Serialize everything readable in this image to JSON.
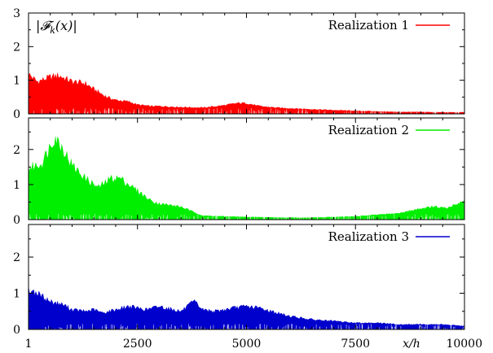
{
  "chart_data": [
    {
      "type": "area",
      "quantity_label": "|𝓕",
      "quantity_sub": "k",
      "quantity_tail": "(x)|",
      "legend_label": "Realization 1",
      "color": "#ff0000",
      "ylim": [
        0,
        3
      ],
      "yticks": [
        "0",
        "1",
        "2",
        "3"
      ],
      "x": [
        1,
        200,
        500,
        700,
        1000,
        1300,
        1500,
        1800,
        2000,
        2300,
        2500,
        2800,
        3000,
        3500,
        4000,
        4500,
        4800,
        5000,
        5300,
        5700,
        6000,
        6500,
        7000,
        7500,
        8000,
        8500,
        9000,
        9500,
        10000
      ],
      "y": [
        1.3,
        1.05,
        1.2,
        1.25,
        1.05,
        1.0,
        0.8,
        0.55,
        0.45,
        0.4,
        0.3,
        0.25,
        0.25,
        0.22,
        0.2,
        0.28,
        0.35,
        0.35,
        0.25,
        0.2,
        0.18,
        0.15,
        0.12,
        0.1,
        0.08,
        0.06,
        0.06,
        0.05,
        0.05
      ]
    },
    {
      "type": "area",
      "legend_label": "Realization 2",
      "color": "#00ee00",
      "ylim": [
        0,
        2.9
      ],
      "yticks": [
        "0",
        "1",
        "2"
      ],
      "x": [
        1,
        300,
        600,
        800,
        1000,
        1300,
        1600,
        1900,
        2100,
        2300,
        2500,
        2800,
        3000,
        3500,
        4000,
        4500,
        5000,
        5500,
        6000,
        6500,
        7000,
        7500,
        8000,
        8500,
        9000,
        9300,
        9600,
        10000
      ],
      "y": [
        1.6,
        1.75,
        2.6,
        2.2,
        1.7,
        1.3,
        1.0,
        1.3,
        1.3,
        1.1,
        0.9,
        0.6,
        0.5,
        0.4,
        0.12,
        0.1,
        0.08,
        0.07,
        0.06,
        0.06,
        0.08,
        0.1,
        0.15,
        0.2,
        0.35,
        0.4,
        0.35,
        0.6
      ]
    },
    {
      "type": "area",
      "legend_label": "Realization 3",
      "color": "#0000cc",
      "ylim": [
        0,
        2.9
      ],
      "yticks": [
        "0",
        "1",
        "2"
      ],
      "xticks": [
        "1",
        "2500",
        "5000",
        "7500",
        "10000"
      ],
      "xlabel": "x/h",
      "x": [
        1,
        200,
        500,
        800,
        1000,
        1300,
        1500,
        1700,
        2000,
        2300,
        2500,
        2700,
        3000,
        3500,
        3800,
        4000,
        4300,
        4700,
        5000,
        5300,
        5700,
        6000,
        6500,
        7000,
        7500,
        8000,
        8500,
        9000,
        9500,
        10000
      ],
      "y": [
        1.2,
        1.1,
        0.85,
        0.75,
        0.6,
        0.55,
        0.6,
        0.5,
        0.6,
        0.7,
        0.65,
        0.6,
        0.7,
        0.55,
        0.85,
        0.6,
        0.55,
        0.65,
        0.7,
        0.65,
        0.5,
        0.4,
        0.3,
        0.25,
        0.2,
        0.2,
        0.15,
        0.15,
        0.15,
        0.1
      ]
    }
  ]
}
